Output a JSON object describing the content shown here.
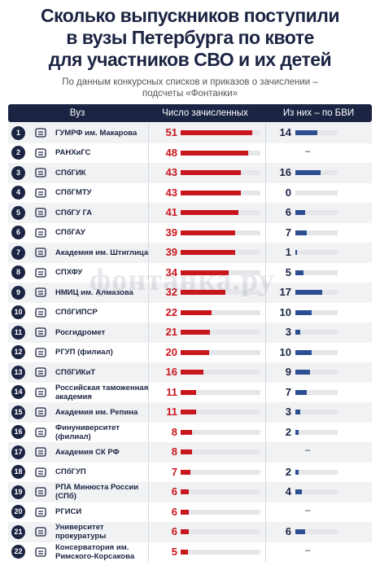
{
  "title_lines": [
    "Сколько выпускников поступили",
    "в вузы Петербурга по квоте",
    "для участников СВО и их детей"
  ],
  "subtitle": "По данным конкурсных списков и приказов о зачислении – подсчеты «Фонтанки»",
  "watermark": "фонтанка.ру",
  "table": {
    "columns": [
      "Вуз",
      "Число зачисленных",
      "Из них – по БВИ"
    ],
    "rows": [
      {
        "rank": 1,
        "name": "ГУМРФ им. Макарова",
        "enrolled": 51,
        "bvi": 14
      },
      {
        "rank": 2,
        "name": "РАНХиГС",
        "enrolled": 48,
        "bvi": "–"
      },
      {
        "rank": 3,
        "name": "СПбГИК",
        "enrolled": 43,
        "bvi": 16
      },
      {
        "rank": 4,
        "name": "СПбГМТУ",
        "enrolled": 43,
        "bvi": 0
      },
      {
        "rank": 5,
        "name": "СПбГУ ГА",
        "enrolled": 41,
        "bvi": 6
      },
      {
        "rank": 6,
        "name": "СПбГАУ",
        "enrolled": 39,
        "bvi": 7
      },
      {
        "rank": 7,
        "name": "Академия им. Штиглица",
        "enrolled": 39,
        "bvi": 1
      },
      {
        "rank": 8,
        "name": "СПХФУ",
        "enrolled": 34,
        "bvi": 5
      },
      {
        "rank": 9,
        "name": "НМИЦ им. Алмазова",
        "enrolled": 32,
        "bvi": 17
      },
      {
        "rank": 10,
        "name": "СПбГИПСР",
        "enrolled": 22,
        "bvi": 10
      },
      {
        "rank": 11,
        "name": "Росгидромет",
        "enrolled": 21,
        "bvi": 3
      },
      {
        "rank": 12,
        "name": "РГУП (филиал)",
        "enrolled": 20,
        "bvi": 10
      },
      {
        "rank": 13,
        "name": "СПбГИКиТ",
        "enrolled": 16,
        "bvi": 9
      },
      {
        "rank": 14,
        "name": "Российская таможенная академия",
        "enrolled": 11,
        "bvi": 7
      },
      {
        "rank": 15,
        "name": "Академия им. Репина",
        "enrolled": 11,
        "bvi": 3
      },
      {
        "rank": 16,
        "name": "Финуниверситет (филиал)",
        "enrolled": 8,
        "bvi": 2
      },
      {
        "rank": 17,
        "name": "Академия СК РФ",
        "enrolled": 8,
        "bvi": "–"
      },
      {
        "rank": 18,
        "name": "СПбГУП",
        "enrolled": 7,
        "bvi": 2
      },
      {
        "rank": 19,
        "name": "РПА Минюста России (СПб)",
        "enrolled": 6,
        "bvi": 4
      },
      {
        "rank": 20,
        "name": "РГИСИ",
        "enrolled": 6,
        "bvi": "–"
      },
      {
        "rank": 21,
        "name": "Университет прокуратуры",
        "enrolled": 6,
        "bvi": 6
      },
      {
        "rank": 22,
        "name": "Консерватория им. Римского-Корсакова",
        "enrolled": 5,
        "bvi": "–"
      }
    ]
  }
}
